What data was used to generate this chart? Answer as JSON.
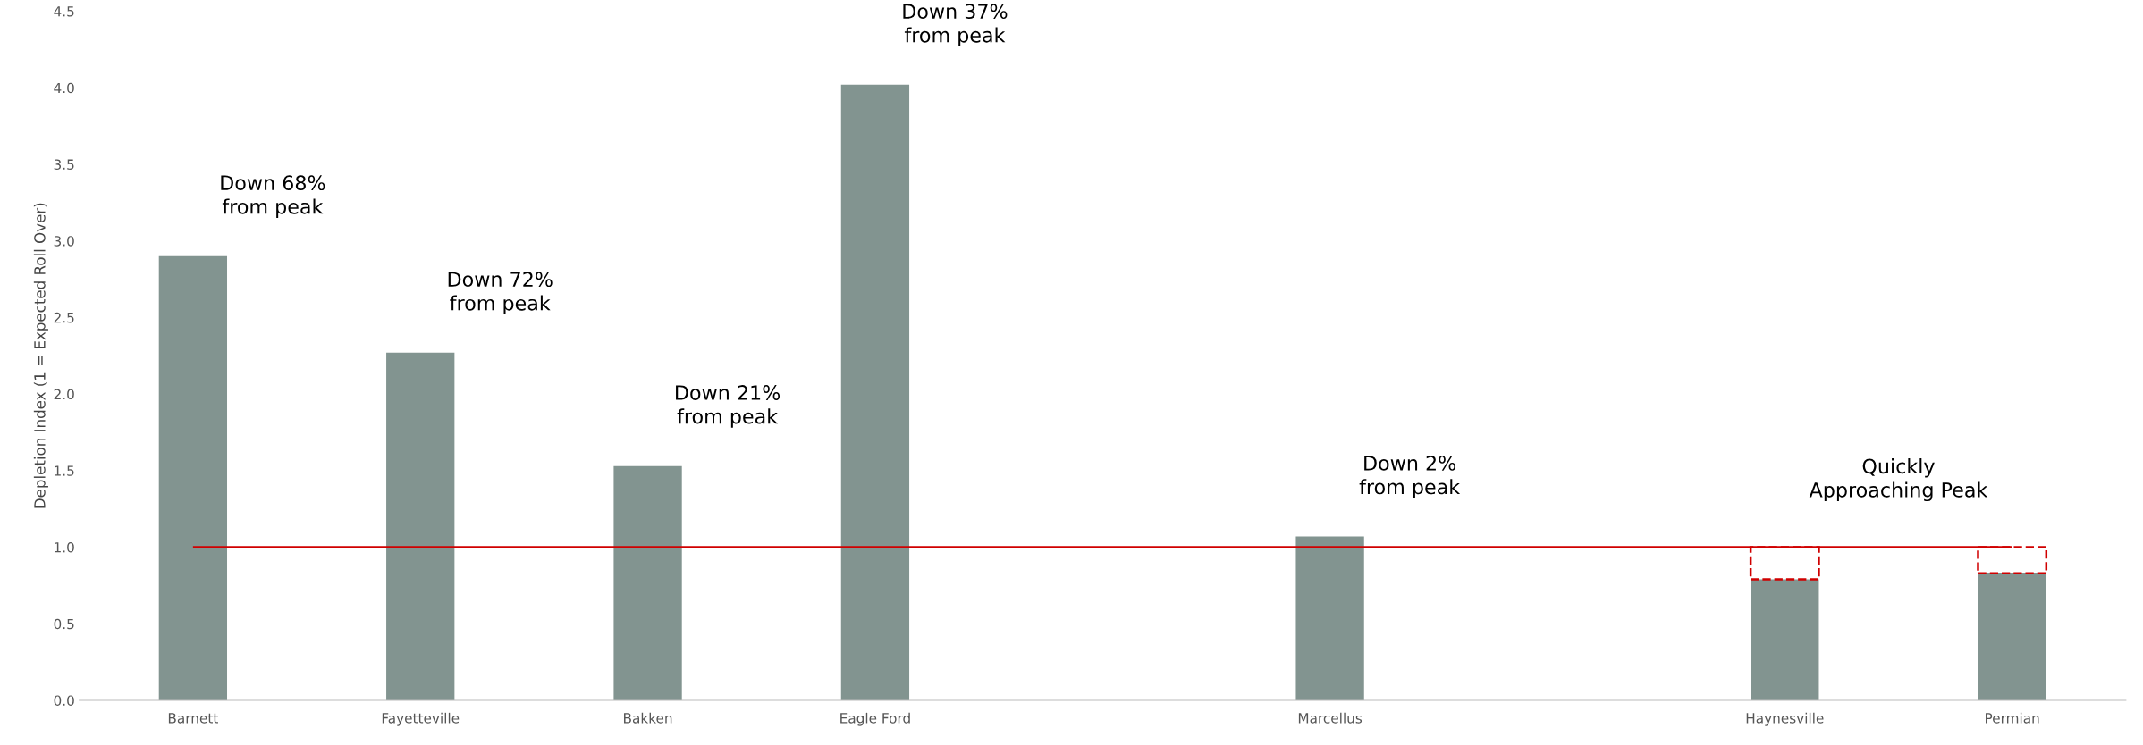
{
  "chart_data": {
    "type": "bar",
    "ylabel": "Depletion Index (1 = Expected Roll Over)",
    "categories": [
      "Barnett",
      "Fayetteville",
      "Bakken",
      "Eagle Ford",
      null,
      "Marcellus",
      null,
      "Haynesville",
      "Permian"
    ],
    "stacked": true,
    "series": [
      {
        "color": "#829490",
        "values": [
          2.9,
          2.27,
          1.53,
          4.02,
          null,
          1.07,
          null,
          0.79,
          0.83
        ]
      },
      {
        "color": "#d00000",
        "line_style": "dashed",
        "values": [
          null,
          null,
          null,
          null,
          null,
          null,
          null,
          0.21,
          0.17
        ]
      }
    ],
    "ylim": [
      0,
      4.5
    ],
    "yticks": [
      {
        "value": 0,
        "label": "0.0"
      },
      {
        "value": 0.5,
        "label": "0.5"
      },
      {
        "value": 1,
        "label": "1.0"
      },
      {
        "value": 1.5,
        "label": "1.5"
      },
      {
        "value": 2,
        "label": "2.0"
      },
      {
        "value": 2.5,
        "label": "2.5"
      },
      {
        "value": 3,
        "label": "3.0"
      },
      {
        "value": 3.5,
        "label": "3.5"
      },
      {
        "value": 4,
        "label": "4.0"
      },
      {
        "value": 4.5,
        "label": "4.5"
      }
    ],
    "ref_lines": [
      {
        "axis": "y",
        "value": 1,
        "color": "#d00000"
      }
    ],
    "grid": false,
    "legend": false,
    "annotations": [
      "Down 68%\nfrom peak",
      "Down 72%\nfrom peak",
      "Down 21%\nfrom peak",
      "Down 37%\nfrom peak",
      "Down 2%\nfrom peak",
      "Quickly\nApproaching Peak"
    ]
  }
}
